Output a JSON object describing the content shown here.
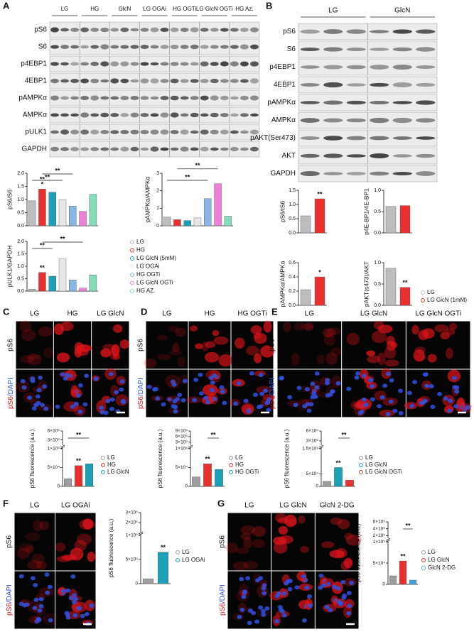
{
  "blots": [
    {
      "label": "A",
      "groups": [
        "LG",
        "HG",
        "GlcN",
        "LG OGAi",
        "HG OGTi",
        "LG GlcN OGTi",
        "HG Az."
      ],
      "rows": [
        "pS6",
        "S6",
        "p4EBP1",
        "4EBP1",
        "pAMPKα",
        "AMPKα",
        "pULK1",
        "GAPDH"
      ]
    },
    {
      "label": "B",
      "groups": [
        "LG",
        "GlcN"
      ],
      "rows": [
        "pS6",
        "S6",
        "p4EBP1",
        "4EBP1",
        "pAMPKα",
        "AMPKα",
        "pAKT(Ser473)",
        "AKT",
        "GAPDH"
      ]
    }
  ],
  "stain": "pS6",
  "counterstain": "/DAPI",
  "image_panels": [
    {
      "label": "C",
      "columns": [
        "LG",
        "HG",
        "LG GlcN"
      ]
    },
    {
      "label": "D",
      "columns": [
        "LG",
        "HG",
        "HG OGTi"
      ]
    },
    {
      "label": "E",
      "columns": [
        "LG",
        "LG GlcN",
        "LG GlcN OGTi"
      ]
    },
    {
      "label": "F",
      "columns": [
        "LG",
        "LG OGAi"
      ]
    },
    {
      "label": "G",
      "columns": [
        "LG",
        "LG GlcN",
        "GlcN 2-DG"
      ]
    }
  ],
  "chart_data": [
    {
      "type": "bar",
      "ylabel": "pS6/S6",
      "values": [
        0.95,
        1.4,
        1.28,
        1.0,
        0.75,
        0.55,
        1.2
      ],
      "colors": [
        "#bdbdbd",
        "#e8312f",
        "#1ba0b8",
        "#e6e6e6",
        "#86b6e8",
        "#ee7fd8",
        "#84dcb9"
      ],
      "ylim": [
        0,
        2
      ],
      "yticks": [
        {
          "value": 0,
          "label": "0.0"
        },
        {
          "value": 0.5,
          "label": "0.5"
        },
        {
          "value": 1,
          "label": "1.0"
        },
        {
          "value": 1.5,
          "label": "1.5"
        },
        {
          "value": 2,
          "label": "2.0"
        }
      ],
      "annotations": [
        {
          "text": "*",
          "over": [
            1
          ]
        },
        {
          "text": "**",
          "over": [
            1
          ]
        },
        {
          "text": "**",
          "over": [
            0,
            3
          ]
        },
        {
          "text": "**",
          "over": [
            1,
            4
          ]
        }
      ]
    },
    {
      "type": "bar",
      "ylabel": "pAMPKα/AMPKα",
      "values": [
        0.5,
        0.35,
        0.3,
        0.45,
        1.55,
        2.4,
        0.55
      ],
      "colors": [
        "#bdbdbd",
        "#e8312f",
        "#1ba0b8",
        "#e6e6e6",
        "#86b6e8",
        "#ee7fd8",
        "#84dcb9"
      ],
      "ylim": [
        0,
        3
      ],
      "yticks": [
        0,
        1,
        2,
        3
      ],
      "annotations": [
        {
          "text": "**",
          "over": [
            0,
            4
          ]
        },
        {
          "text": "**",
          "over": [
            1,
            5
          ]
        }
      ]
    },
    {
      "type": "bar",
      "ylabel": "pULK1/GAPDH",
      "values": [
        0.08,
        0.75,
        0.6,
        1.3,
        0.45,
        0.12,
        0.65
      ],
      "categories": [
        "LG",
        "HG",
        "LG GlcN (5mM)",
        "LG OGAi",
        "HG OGTi",
        "LG GlcN OGTi",
        "HG AZ."
      ],
      "colors": [
        "#bdbdbd",
        "#e8312f",
        "#1ba0b8",
        "#e6e6e6",
        "#86b6e8",
        "#ee7fd8",
        "#84dcb9"
      ],
      "ylim": [
        0,
        2
      ],
      "yticks": [
        {
          "value": 0,
          "label": "0.0"
        },
        {
          "value": 0.5,
          "label": "0.5"
        },
        {
          "value": 1,
          "label": "1.0"
        },
        {
          "value": 1.5,
          "label": "1.5"
        },
        {
          "value": 2,
          "label": "2.0"
        }
      ],
      "legend": true,
      "annotations": [
        {
          "text": "**",
          "over": [
            1
          ]
        },
        {
          "text": "**",
          "over": [
            0,
            2
          ]
        },
        {
          "text": "**",
          "over": [
            1,
            5
          ]
        }
      ]
    },
    {
      "type": "bar",
      "ylabel": "pS6/tS6",
      "values": [
        0.6,
        1.2
      ],
      "colors": [
        "#bdbdbd",
        "#e8312f"
      ],
      "ylim": [
        0,
        1.5
      ],
      "yticks": [
        {
          "value": 0,
          "label": "0.0"
        },
        {
          "value": 0.5,
          "label": "0.5"
        },
        {
          "value": 1,
          "label": "1.0"
        },
        {
          "value": 1.5,
          "label": "1.5"
        }
      ],
      "annotations": [
        {
          "text": "**",
          "over": [
            1
          ]
        }
      ]
    },
    {
      "type": "bar",
      "ylabel": "p4E-BP1/4E-BP1",
      "values": [
        0.62,
        0.64
      ],
      "colors": [
        "#bdbdbd",
        "#e8312f"
      ],
      "ylim": [
        0,
        1
      ],
      "yticks": [
        {
          "value": 0,
          "label": "0.0"
        },
        {
          "value": 0.5,
          "label": "0.5"
        },
        {
          "value": 1,
          "label": "1.0"
        }
      ]
    },
    {
      "type": "bar",
      "ylabel": "pAMPKα/AMPKα",
      "values": [
        0.22,
        0.4
      ],
      "colors": [
        "#bdbdbd",
        "#e8312f"
      ],
      "ylim": [
        0,
        0.6
      ],
      "yticks": [
        {
          "value": 0,
          "label": "0.0"
        },
        {
          "value": 0.2,
          "label": "0.2"
        },
        {
          "value": 0.4,
          "label": "0.4"
        },
        {
          "value": 0.6,
          "label": "0.6"
        }
      ],
      "annotations": [
        {
          "text": "*",
          "over": [
            1
          ]
        }
      ]
    },
    {
      "type": "bar",
      "ylabel": "pAKT(s473)/AKT",
      "values": [
        0.87,
        0.42
      ],
      "colors": [
        "#bdbdbd",
        "#e8312f"
      ],
      "categories": [
        "LG",
        "LG GlcN (1mM)"
      ],
      "legend": true,
      "ylim": [
        0,
        1
      ],
      "yticks": [
        {
          "value": 0,
          "label": "0.0"
        },
        {
          "value": 0.5,
          "label": "0.5"
        },
        {
          "value": 1,
          "label": "1.0"
        }
      ],
      "annotations": [
        {
          "text": "**",
          "over": [
            1
          ]
        }
      ]
    },
    {
      "type": "bar",
      "ylabel": "pS6 fluorescence (a.u.)",
      "categories": [
        "LG",
        "HG",
        "LG GlcN"
      ],
      "legend": true,
      "values": [
        20000,
        55000,
        60000
      ],
      "colors": [
        "#9e9e9e",
        "#e8312f",
        "#1ba0b8"
      ],
      "ylim": [
        0,
        600000
      ],
      "axis_break": 100000,
      "yticks": [
        0,
        {
          "value": 50000,
          "label": "5×10⁴"
        },
        {
          "value": 100000,
          "label": "1×10⁵"
        },
        {
          "value": 300000,
          "label": "3×10⁵"
        },
        {
          "value": 600000,
          "label": "6×10⁵"
        }
      ],
      "annotations": [
        {
          "text": "**",
          "over": [
            1
          ]
        },
        {
          "text": "**",
          "over": [
            0,
            2
          ]
        }
      ]
    },
    {
      "type": "bar",
      "ylabel": "pS6 fluorescence (a.u.)",
      "categories": [
        "LG",
        "HG",
        "HG OGTi"
      ],
      "legend": true,
      "values": [
        25000,
        60000,
        45000
      ],
      "colors": [
        "#9e9e9e",
        "#e8312f",
        "#1ba0b8"
      ],
      "ylim": [
        0,
        900000
      ],
      "axis_break": 100000,
      "yticks": [
        0,
        {
          "value": 50000,
          "label": "5×10⁴"
        },
        {
          "value": 100000,
          "label": "1×10⁵"
        },
        {
          "value": 300000,
          "label": "3×10⁵"
        },
        {
          "value": 600000,
          "label": "6×10⁵"
        },
        {
          "value": 900000,
          "label": "9×10⁵"
        }
      ],
      "annotations": [
        {
          "text": "**",
          "over": [
            1
          ]
        },
        {
          "text": "**",
          "over": [
            1,
            2
          ]
        }
      ]
    },
    {
      "type": "bar",
      "ylabel": "pS6 fluorescence (a.u.)",
      "categories": [
        "LG",
        "LG GlcN",
        "LG GlcN OGTi"
      ],
      "legend": true,
      "values": [
        20000,
        75000,
        25000
      ],
      "colors": [
        "#9e9e9e",
        "#1ba0b8",
        "#e8312f"
      ],
      "ylim": [
        0,
        600000
      ],
      "axis_break": 150000,
      "yticks": [
        0,
        {
          "value": 50000,
          "label": "5×10⁴"
        },
        {
          "value": 150000,
          "label": "1.5×10⁵"
        },
        {
          "value": 300000,
          "label": "3×10⁵"
        },
        {
          "value": 600000,
          "label": "6×10⁵"
        }
      ],
      "annotations": [
        {
          "text": "**",
          "over": [
            1
          ]
        },
        {
          "text": "**",
          "over": [
            1,
            2
          ]
        }
      ]
    },
    {
      "type": "bar",
      "ylabel": "pS6 fluorescence (a.u.)",
      "categories": [
        "LG",
        "LG OGAi"
      ],
      "legend": true,
      "values": [
        10000,
        65000
      ],
      "colors": [
        "#9e9e9e",
        "#1ba0b8"
      ],
      "ylim": [
        0,
        300000
      ],
      "axis_break": 100000,
      "yticks": [
        0,
        {
          "value": 50000,
          "label": "5×10⁴"
        },
        {
          "value": 100000,
          "label": "1×10⁵"
        },
        {
          "value": 200000,
          "label": "2×10⁵"
        },
        {
          "value": 300000,
          "label": "3×10⁵"
        }
      ],
      "annotations": [
        {
          "text": "**",
          "over": [
            1
          ]
        }
      ]
    },
    {
      "type": "bar",
      "ylabel": "pS6 fluorescence (a.u.)",
      "categories": [
        "LG",
        "LG GlcN",
        "GlcN 2-DG"
      ],
      "legend": true,
      "values": [
        20000,
        55000,
        10000
      ],
      "colors": [
        "#9e9e9e",
        "#e8312f",
        "#4aa3d8"
      ],
      "ylim": [
        0,
        600000
      ],
      "axis_break": 100000,
      "yticks": [
        0,
        {
          "value": 50000,
          "label": "5×10⁴"
        },
        {
          "value": 100000,
          "label": "1×10⁵"
        },
        {
          "value": 200000,
          "label": "2×10⁵"
        },
        {
          "value": 400000,
          "label": "4×10⁵"
        },
        {
          "value": 600000,
          "label": "6×10⁵"
        }
      ],
      "annotations": [
        {
          "text": "**",
          "over": [
            1
          ]
        },
        {
          "text": "**",
          "over": [
            1,
            2
          ]
        }
      ]
    }
  ]
}
